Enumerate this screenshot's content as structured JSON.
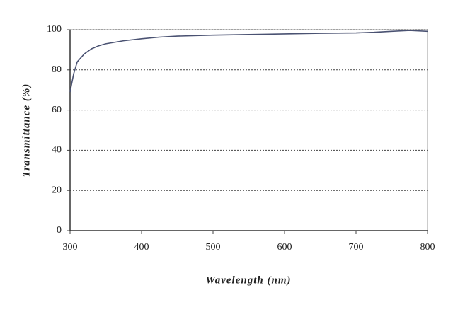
{
  "chart_data": {
    "type": "line",
    "x_label": "Wavelength (nm)",
    "y_label": "Transmittance (%)",
    "x": [
      300,
      305,
      310,
      320,
      330,
      340,
      350,
      375,
      400,
      425,
      450,
      500,
      550,
      600,
      650,
      700,
      725,
      750,
      775,
      800
    ],
    "series": [
      {
        "name": "Transmittance",
        "color": "#4a5272",
        "values": [
          69,
          78,
          84,
          88,
          90.5,
          92,
          93,
          94.5,
          95.5,
          96.3,
          96.8,
          97.3,
          97.6,
          97.9,
          98.2,
          98.4,
          98.7,
          99.2,
          99.6,
          99.2
        ]
      }
    ],
    "xlim": [
      300,
      800
    ],
    "xticks": [
      300,
      400,
      500,
      600,
      700,
      800
    ],
    "ylim": [
      0,
      100
    ],
    "yticks": [
      0,
      20,
      40,
      60,
      80,
      100
    ],
    "grid": true,
    "legend": false
  }
}
